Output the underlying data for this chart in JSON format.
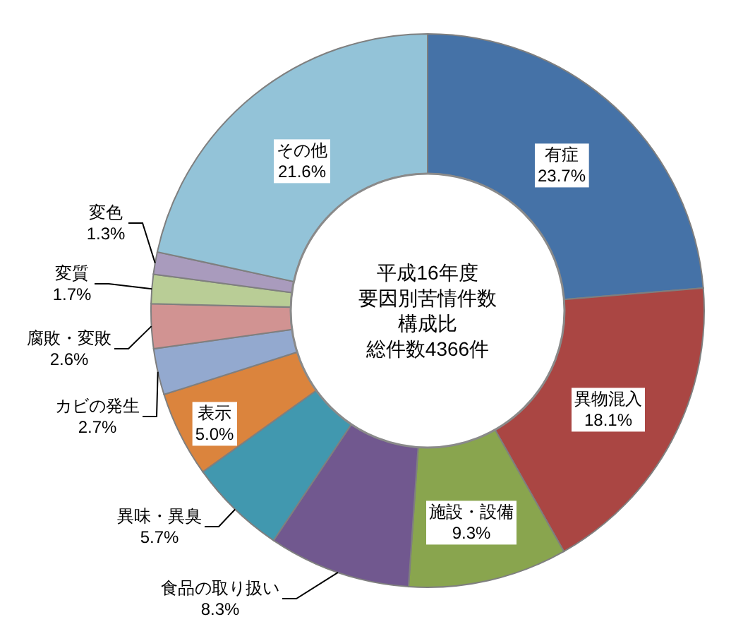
{
  "chart_data": {
    "type": "donut",
    "title": "平成16年度要因別苦情件数構成比",
    "subtitle": "総件数4366件",
    "categories": [
      "有症",
      "異物混入",
      "施設・設備",
      "食品の取り扱い",
      "異味・異臭",
      "表示",
      "カビの発生",
      "腐敗・変敗",
      "変質",
      "変色",
      "その他"
    ],
    "values": [
      23.7,
      18.1,
      9.3,
      8.3,
      5.7,
      5.0,
      2.7,
      2.6,
      1.7,
      1.3,
      21.6
    ],
    "value_labels": [
      "23.7%",
      "18.1%",
      "9.3%",
      "8.3%",
      "5.7%",
      "5.0%",
      "2.7%",
      "2.6%",
      "1.7%",
      "1.3%",
      "21.6%"
    ],
    "colors": [
      "#4572a7",
      "#aa4643",
      "#89a54e",
      "#71588f",
      "#4198af",
      "#db843d",
      "#93a9cf",
      "#d19392",
      "#b9cd96",
      "#a99bbd",
      "#93c3d8"
    ]
  }
}
